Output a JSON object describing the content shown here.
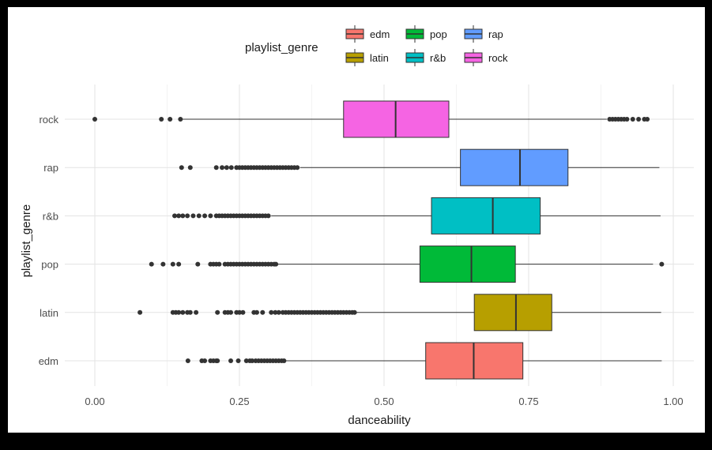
{
  "chart_data": {
    "type": "boxplot",
    "orientation": "horizontal",
    "xlabel": "danceability",
    "ylabel": "playlist_genre",
    "xlim": [
      -0.03,
      1.03
    ],
    "x_ticks": [
      0.0,
      0.25,
      0.5,
      0.75,
      1.0
    ],
    "x_tick_labels": [
      "0.00",
      "0.25",
      "0.50",
      "0.75",
      "1.00"
    ],
    "grid": true,
    "legend": {
      "title": "playlist_genre",
      "position": "top",
      "items": [
        {
          "label": "edm",
          "color": "#F8766D"
        },
        {
          "label": "latin",
          "color": "#B79F00"
        },
        {
          "label": "pop",
          "color": "#00BA38"
        },
        {
          "label": "r&b",
          "color": "#00BFC4"
        },
        {
          "label": "rap",
          "color": "#619CFF"
        },
        {
          "label": "rock",
          "color": "#F564E3"
        }
      ]
    },
    "categories": [
      "edm",
      "latin",
      "pop",
      "r&b",
      "rap",
      "rock"
    ],
    "series": [
      {
        "name": "edm",
        "color": "#F8766D",
        "whisker_low": 0.33,
        "q1": 0.572,
        "median": 0.655,
        "q3": 0.74,
        "whisker_high": 0.98,
        "outliers": [
          0.161,
          0.185,
          0.19,
          0.2,
          0.205,
          0.21,
          0.212,
          0.235,
          0.248,
          0.262,
          0.268,
          0.272,
          0.278,
          0.283,
          0.288,
          0.293,
          0.298,
          0.303,
          0.308,
          0.313,
          0.318,
          0.323,
          0.327
        ]
      },
      {
        "name": "latin",
        "color": "#B79F00",
        "whisker_low": 0.45,
        "q1": 0.656,
        "median": 0.728,
        "q3": 0.79,
        "whisker_high": 0.979,
        "outliers": [
          0.078,
          0.135,
          0.14,
          0.145,
          0.152,
          0.16,
          0.165,
          0.175,
          0.212,
          0.225,
          0.23,
          0.235,
          0.245,
          0.25,
          0.256,
          0.275,
          0.28,
          0.29,
          0.305,
          0.312,
          0.318,
          0.325,
          0.33,
          0.335,
          0.34,
          0.345,
          0.35,
          0.355,
          0.36,
          0.365,
          0.37,
          0.375,
          0.38,
          0.385,
          0.39,
          0.395,
          0.4,
          0.405,
          0.41,
          0.415,
          0.42,
          0.425,
          0.43,
          0.435,
          0.44,
          0.445,
          0.449
        ]
      },
      {
        "name": "pop",
        "color": "#00BA38",
        "whisker_low": 0.315,
        "q1": 0.562,
        "median": 0.651,
        "q3": 0.727,
        "whisker_high": 0.965,
        "outliers": [
          0.098,
          0.118,
          0.135,
          0.145,
          0.178,
          0.2,
          0.205,
          0.21,
          0.215,
          0.225,
          0.23,
          0.235,
          0.24,
          0.245,
          0.25,
          0.255,
          0.26,
          0.265,
          0.27,
          0.275,
          0.28,
          0.285,
          0.29,
          0.295,
          0.3,
          0.305,
          0.31,
          0.313,
          0.98
        ]
      },
      {
        "name": "r&b",
        "color": "#00BFC4",
        "whisker_low": 0.305,
        "q1": 0.582,
        "median": 0.688,
        "q3": 0.77,
        "whisker_high": 0.978,
        "outliers": [
          0.138,
          0.145,
          0.152,
          0.16,
          0.17,
          0.18,
          0.19,
          0.2,
          0.21,
          0.215,
          0.22,
          0.225,
          0.23,
          0.235,
          0.24,
          0.245,
          0.25,
          0.255,
          0.26,
          0.265,
          0.27,
          0.275,
          0.28,
          0.285,
          0.29,
          0.295,
          0.3
        ]
      },
      {
        "name": "rap",
        "color": "#619CFF",
        "whisker_low": 0.355,
        "q1": 0.632,
        "median": 0.735,
        "q3": 0.818,
        "whisker_high": 0.976,
        "outliers": [
          0.15,
          0.165,
          0.21,
          0.22,
          0.228,
          0.236,
          0.245,
          0.25,
          0.255,
          0.26,
          0.265,
          0.27,
          0.275,
          0.28,
          0.285,
          0.29,
          0.295,
          0.3,
          0.305,
          0.31,
          0.315,
          0.32,
          0.325,
          0.33,
          0.335,
          0.34,
          0.345,
          0.35
        ]
      },
      {
        "name": "rock",
        "color": "#F564E3",
        "whisker_low": 0.15,
        "q1": 0.43,
        "median": 0.52,
        "q3": 0.612,
        "whisker_high": 0.885,
        "outliers": [
          0.0,
          0.115,
          0.13,
          0.148,
          0.89,
          0.895,
          0.9,
          0.905,
          0.91,
          0.915,
          0.92,
          0.93,
          0.94,
          0.95,
          0.955
        ]
      }
    ]
  }
}
